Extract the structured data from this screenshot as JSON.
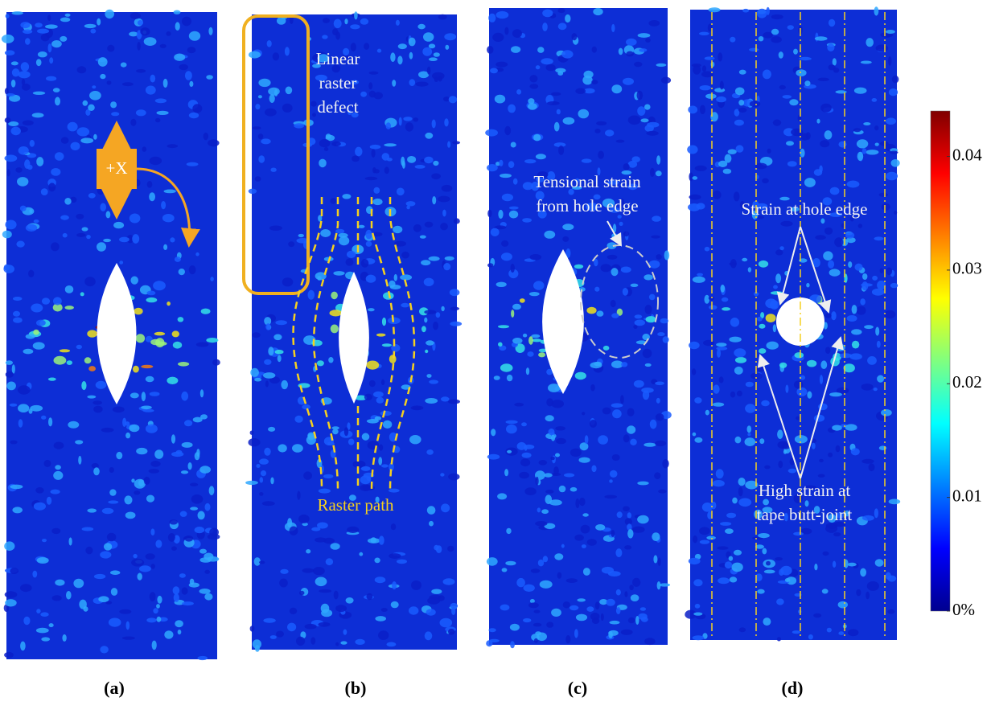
{
  "panels": [
    {
      "label": "(a)",
      "annotations": [
        {
          "lines": [
            "+X"
          ]
        }
      ]
    },
    {
      "label": "(b)",
      "annotations": [
        {
          "lines": [
            "Linear",
            "raster",
            "defect"
          ]
        },
        {
          "lines": [
            "Raster path"
          ]
        }
      ]
    },
    {
      "label": "(c)",
      "annotations": [
        {
          "lines": [
            "Tensional strain",
            "from hole edge"
          ]
        }
      ]
    },
    {
      "label": "(d)",
      "annotations": [
        {
          "lines": [
            "Strain at hole edge"
          ]
        },
        {
          "lines": [
            "High strain at",
            "tape butt-joint"
          ]
        }
      ]
    }
  ],
  "colorbar": {
    "lim": [
      0,
      0.044
    ],
    "ticks": [
      {
        "value": 0,
        "label": "0%"
      },
      0.01,
      0.02,
      0.03,
      0.04
    ]
  }
}
